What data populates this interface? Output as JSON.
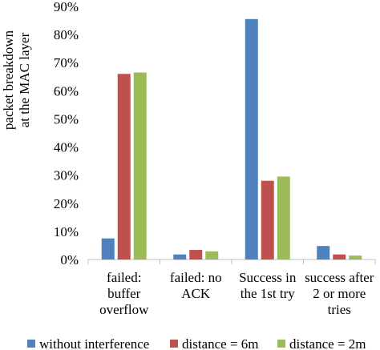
{
  "chart_data": {
    "type": "bar",
    "categories": [
      [
        "failed:",
        "buffer",
        "overflow"
      ],
      [
        "failed: no",
        "ACK"
      ],
      [
        "Success in",
        "the 1st try"
      ],
      [
        "success after",
        "2 or more",
        "tries"
      ]
    ],
    "series": [
      {
        "name": "without interference",
        "color": "#4f81bd",
        "values": [
          7.5,
          1.8,
          85.5,
          4.8
        ]
      },
      {
        "name": "distance = 6m",
        "color": "#c0504d",
        "values": [
          66.0,
          3.4,
          28.0,
          1.8
        ]
      },
      {
        "name": "distance = 2m",
        "color": "#9bbb59",
        "values": [
          66.5,
          2.9,
          29.5,
          1.4
        ]
      }
    ],
    "ylabel": [
      "packet breakdown",
      "at the MAC layer"
    ],
    "ylim": [
      0,
      90
    ],
    "yticks": [
      "0%",
      "10%",
      "20%",
      "30%",
      "40%",
      "50%",
      "60%",
      "70%",
      "80%",
      "90%"
    ],
    "grid": false,
    "legend_position": "bottom"
  }
}
